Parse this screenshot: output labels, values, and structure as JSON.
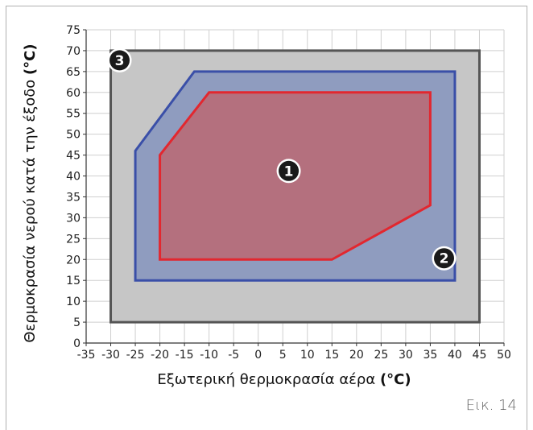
{
  "figure_label": "Εικ. 14",
  "chart_data": {
    "type": "area",
    "xlabel": "Εξωτερική θερμοκρασία αέρα",
    "xlabel_unit": "(°C)",
    "ylabel": "Θερμοκρασία νερού κατά την έξοδο",
    "ylabel_unit": "(°C)",
    "xlim": [
      -35,
      50
    ],
    "ylim": [
      0,
      75
    ],
    "xticks": [
      -35,
      -30,
      -25,
      -20,
      -15,
      -10,
      -5,
      0,
      5,
      10,
      15,
      20,
      25,
      30,
      35,
      40,
      45,
      50
    ],
    "yticks": [
      0,
      5,
      10,
      15,
      20,
      25,
      30,
      35,
      40,
      45,
      50,
      55,
      60,
      65,
      70,
      75
    ],
    "grid": true,
    "regions": [
      {
        "label": "3",
        "color": "#c6c6c6",
        "stroke": "#555555",
        "x": [
          -30,
          45,
          45,
          -30
        ],
        "y": [
          70,
          70,
          5,
          5
        ]
      },
      {
        "label": "2",
        "color": "#8f9cbf",
        "stroke": "#3a4fa8",
        "x": [
          -25,
          -13,
          40,
          40,
          -25
        ],
        "y": [
          46,
          65,
          65,
          15,
          15
        ]
      },
      {
        "label": "1",
        "color": "#b4707e",
        "stroke": "#e2272f",
        "x": [
          -20,
          -10,
          35,
          35,
          15,
          -20
        ],
        "y": [
          45,
          60,
          60,
          33,
          20,
          20
        ]
      }
    ],
    "badge_positions": [
      {
        "label": "3",
        "x": -28.2,
        "y": 67.7
      },
      {
        "label": "2",
        "x": 37.8,
        "y": 20.3
      },
      {
        "label": "1",
        "x": 6.2,
        "y": 41.2
      }
    ]
  }
}
